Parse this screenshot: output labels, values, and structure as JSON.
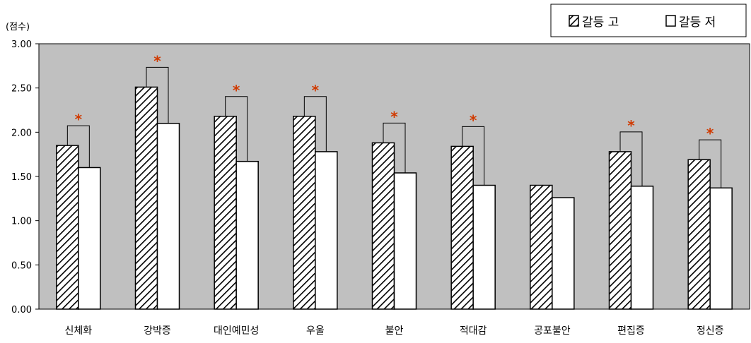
{
  "chart_data": {
    "type": "bar",
    "ylabel": "(점수)",
    "ylim": [
      0,
      3
    ],
    "yticks": [
      "0.00",
      "0.50",
      "1.00",
      "1.50",
      "2.00",
      "2.50",
      "3.00"
    ],
    "categories": [
      "신체화",
      "강박증",
      "대인예민성",
      "우울",
      "불안",
      "적대감",
      "공포불안",
      "편집증",
      "정신증"
    ],
    "series": [
      {
        "name": "갈등 고",
        "values": [
          1.85,
          2.51,
          2.18,
          2.18,
          1.88,
          1.84,
          1.4,
          1.78,
          1.69
        ]
      },
      {
        "name": "갈등 저",
        "values": [
          1.6,
          2.1,
          1.67,
          1.78,
          1.54,
          1.4,
          1.26,
          1.39,
          1.37
        ]
      }
    ],
    "significant": [
      true,
      true,
      true,
      true,
      true,
      true,
      false,
      true,
      true
    ],
    "significance_mark": "*",
    "legend": {
      "placement": "top-right",
      "entries": [
        {
          "symbol": "hatched",
          "label": "갈등 고"
        },
        {
          "symbol": "white",
          "label": "갈등 저"
        }
      ]
    },
    "grid": false,
    "colors": {
      "plot_background": "#c0c0c0",
      "bar_white": "#ffffff",
      "hatch": "#000000",
      "significance": "#d03a00"
    }
  }
}
